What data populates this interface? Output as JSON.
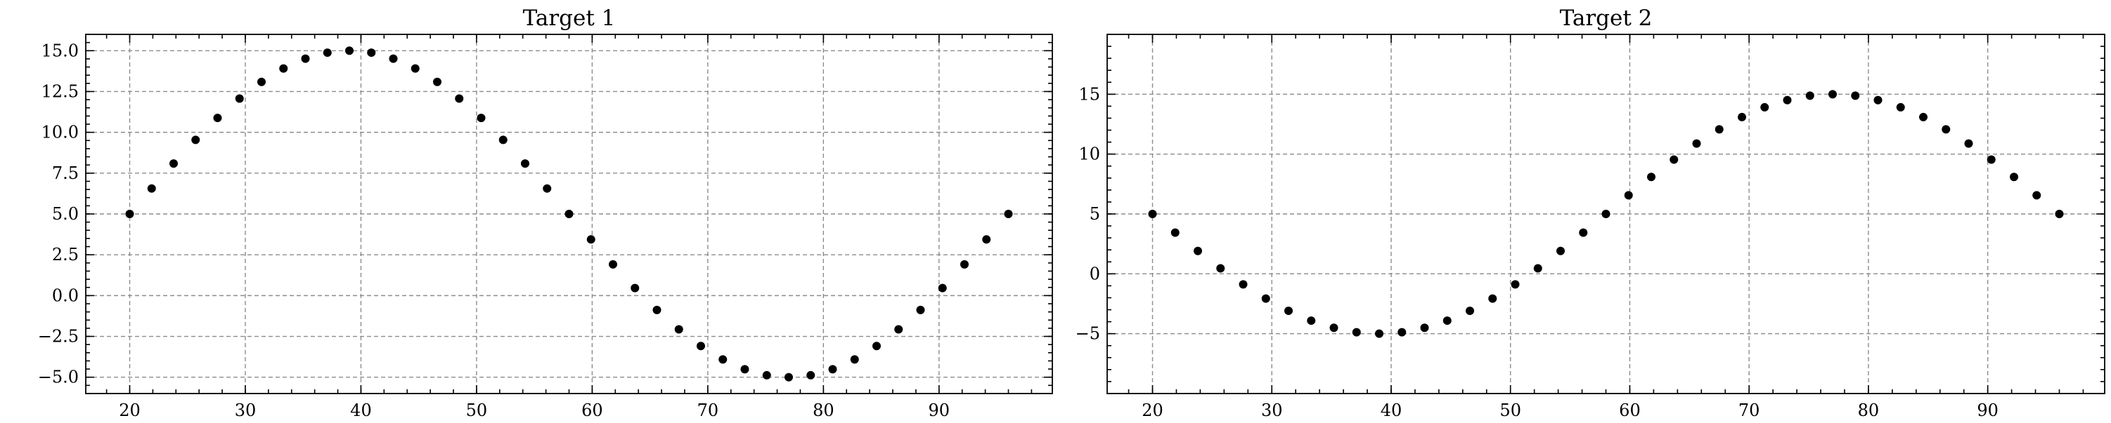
{
  "chart_data": [
    {
      "type": "scatter",
      "title": "Target 1",
      "xlabel": "",
      "ylabel": "",
      "xlim": [
        16.2,
        99.8
      ],
      "ylim": [
        -6.0,
        16.0
      ],
      "xticks": [
        20,
        30,
        40,
        50,
        60,
        70,
        80,
        90
      ],
      "xtick_labels": [
        "20",
        "30",
        "40",
        "50",
        "60",
        "70",
        "80",
        "90"
      ],
      "xminor_step": 2,
      "yticks": [
        -5.0,
        -2.5,
        0.0,
        2.5,
        5.0,
        7.5,
        10.0,
        12.5,
        15.0
      ],
      "ytick_labels": [
        "−5.0",
        "−2.5",
        "0.0",
        "2.5",
        "5.0",
        "7.5",
        "10.0",
        "12.5",
        "15.0"
      ],
      "yminor_step": 0.5,
      "grid": true,
      "marker_color": "#000000",
      "series": [
        {
          "x": [
            20.0,
            21.9,
            23.8,
            25.7,
            27.6,
            29.5,
            31.4,
            33.3,
            35.2,
            37.1,
            39.0,
            40.9,
            42.8,
            44.7,
            46.6,
            48.5,
            50.4,
            52.3,
            54.2,
            56.1,
            58.0,
            59.9,
            61.8,
            63.7,
            65.6,
            67.5,
            69.4,
            71.3,
            73.2,
            75.1,
            77.0,
            78.9,
            80.8,
            82.7,
            84.6,
            86.5,
            88.4,
            90.3,
            92.2,
            94.1,
            96.0
          ],
          "y": [
            5.0,
            6.56,
            8.09,
            9.54,
            10.88,
            12.07,
            13.09,
            13.91,
            14.51,
            14.88,
            15.0,
            14.88,
            14.51,
            13.91,
            13.09,
            12.07,
            10.88,
            9.54,
            8.09,
            6.56,
            5.0,
            3.44,
            1.91,
            0.46,
            -0.88,
            -2.07,
            -3.09,
            -3.91,
            -4.51,
            -4.88,
            -5.0,
            -4.88,
            -4.51,
            -3.91,
            -3.09,
            -2.07,
            -0.88,
            0.46,
            1.91,
            3.44,
            5.0
          ]
        }
      ]
    },
    {
      "type": "scatter",
      "title": "Target 2",
      "xlabel": "",
      "ylabel": "",
      "xlim": [
        16.2,
        99.8
      ],
      "ylim": [
        -10.0,
        20.0
      ],
      "xticks": [
        20,
        30,
        40,
        50,
        60,
        70,
        80,
        90
      ],
      "xtick_labels": [
        "20",
        "30",
        "40",
        "50",
        "60",
        "70",
        "80",
        "90"
      ],
      "xminor_step": 2,
      "yticks": [
        -5,
        0,
        5,
        10,
        15
      ],
      "ytick_labels": [
        "−5",
        "0",
        "5",
        "10",
        "15"
      ],
      "yminor_step": 1,
      "grid": true,
      "marker_color": "#000000",
      "series": [
        {
          "x": [
            20.0,
            21.9,
            23.8,
            25.7,
            27.6,
            29.5,
            31.4,
            33.3,
            35.2,
            37.1,
            39.0,
            40.9,
            42.8,
            44.7,
            46.6,
            48.5,
            50.4,
            52.3,
            54.2,
            56.1,
            58.0,
            59.9,
            61.8,
            63.7,
            65.6,
            67.5,
            69.4,
            71.3,
            73.2,
            75.1,
            77.0,
            78.9,
            80.8,
            82.7,
            84.6,
            86.5,
            88.4,
            90.3,
            92.2,
            94.1,
            96.0
          ],
          "y": [
            5.0,
            3.44,
            1.91,
            0.46,
            -0.88,
            -2.07,
            -3.09,
            -3.91,
            -4.51,
            -4.88,
            -5.0,
            -4.88,
            -4.51,
            -3.91,
            -3.09,
            -2.07,
            -0.88,
            0.46,
            1.91,
            3.44,
            5.0,
            6.56,
            8.09,
            9.54,
            10.88,
            12.07,
            13.09,
            13.91,
            14.51,
            14.88,
            15.0,
            14.88,
            14.51,
            13.91,
            13.09,
            12.07,
            10.88,
            9.54,
            8.09,
            6.56,
            5.0
          ]
        }
      ]
    }
  ]
}
